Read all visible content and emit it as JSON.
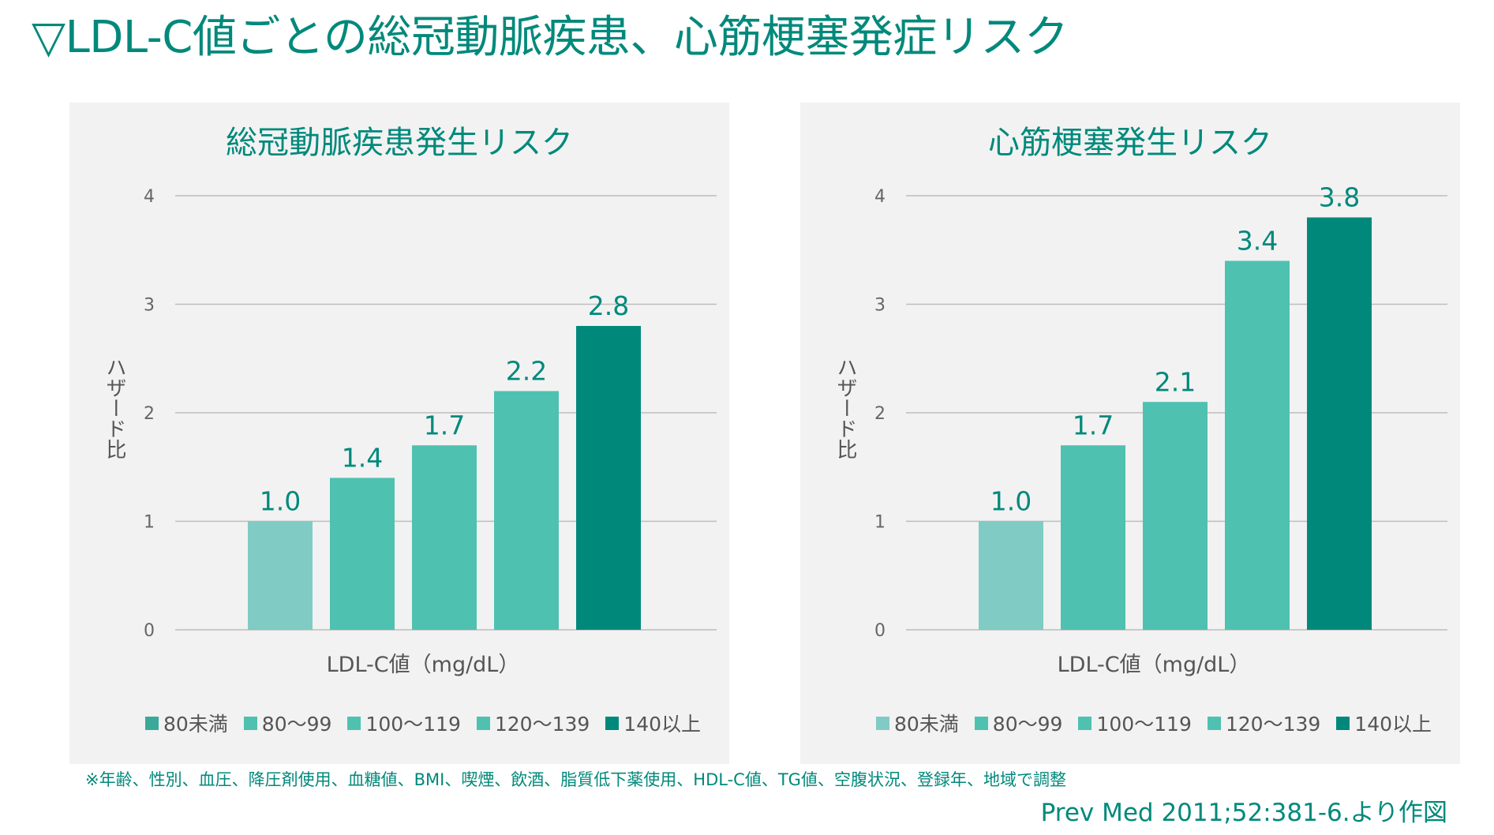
{
  "title": "▽LDL-C値ごとの総冠動脈疾患、心筋梗塞発症リスク",
  "footnote": "※年齢、性別、血圧、降圧剤使用、血糖値、BMI、喫煙、飲酒、脂質低下薬使用、HDL-C値、TG値、空腹状況、登録年、地域で調整",
  "source": "Prev Med 2011;52:381-6.より作図",
  "colors": {
    "accent": "#00897b",
    "bar_light": "#80cbc4",
    "bar_mid": "#4fc1b0",
    "bar_dark": "#00897b",
    "grid": "#bdbdbd",
    "panel_bg": "#f2f2f2"
  },
  "chart_data": [
    {
      "type": "bar",
      "title": "総冠動脈疾患発生リスク",
      "xlabel": "LDL-C値（mg/dL）",
      "ylabel": "ハザード比",
      "ylim": [
        0,
        4
      ],
      "yticks": [
        "0",
        "1",
        "2",
        "3",
        "4"
      ],
      "grid": true,
      "legend_position": "bottom",
      "categories": [
        "80未満",
        "80〜99",
        "100〜119",
        "120〜139",
        "140以上"
      ],
      "values": [
        1.0,
        1.4,
        1.7,
        2.2,
        2.8
      ],
      "value_labels": [
        "1.0",
        "1.4",
        "1.7",
        "2.2",
        "2.8"
      ],
      "bar_colors": [
        "#80cbc4",
        "#4fc1b0",
        "#4fc1b0",
        "#4fc1b0",
        "#00897b"
      ],
      "legend_colors": [
        "#3aa99a",
        "#4fc1b0",
        "#4fc1b0",
        "#4fc1b0",
        "#00897b"
      ]
    },
    {
      "type": "bar",
      "title": "心筋梗塞発生リスク",
      "xlabel": "LDL-C値（mg/dL）",
      "ylabel": "ハザード比",
      "ylim": [
        0,
        4
      ],
      "yticks": [
        "0",
        "1",
        "2",
        "3",
        "4"
      ],
      "grid": true,
      "legend_position": "bottom",
      "categories": [
        "80未満",
        "80〜99",
        "100〜119",
        "120〜139",
        "140以上"
      ],
      "values": [
        1.0,
        1.7,
        2.1,
        3.4,
        3.8
      ],
      "value_labels": [
        "1.0",
        "1.7",
        "2.1",
        "3.4",
        "3.8"
      ],
      "bar_colors": [
        "#80cbc4",
        "#4fc1b0",
        "#4fc1b0",
        "#4fc1b0",
        "#00897b"
      ],
      "legend_colors": [
        "#80cbc4",
        "#4fc1b0",
        "#4fc1b0",
        "#4fc1b0",
        "#00897b"
      ]
    }
  ]
}
